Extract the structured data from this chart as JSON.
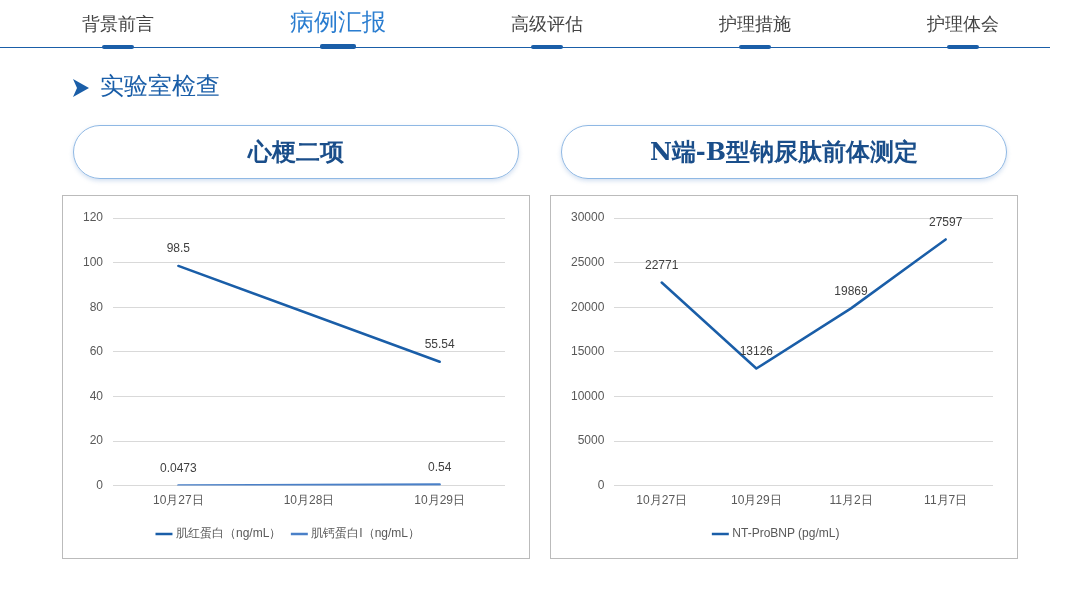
{
  "chart_data": [
    {
      "type": "other",
      "annotations": [
        "背景前言",
        "病例汇报",
        "高级评估",
        "护理措施",
        "护理体会",
        "实验室检查"
      ]
    },
    {
      "type": "line",
      "title": "心梗二项",
      "categories": [
        "10月27日",
        "10月28日",
        "10月29日"
      ],
      "series": [
        {
          "name": "肌红蛋白（ng/mL）",
          "color": "#1a5ea8",
          "values": [
            98.5,
            null,
            55.54
          ]
        },
        {
          "name": "肌钙蛋白I（ng/mL）",
          "color": "#4a80c8",
          "values": [
            0.0473,
            null,
            0.54
          ]
        }
      ],
      "ylim": [
        0,
        120
      ],
      "yticks": [
        0,
        20,
        40,
        60,
        80,
        100,
        120
      ],
      "grid": "y",
      "legend": "bottom",
      "data_labels": true,
      "marker": "none",
      "line_style": "solid"
    },
    {
      "type": "line",
      "title": "N端-B型钠尿肽前体测定",
      "categories": [
        "10月27日",
        "10月29日",
        "11月2日",
        "11月7日"
      ],
      "series": [
        {
          "name": "NT-ProBNP (pg/mL)",
          "color": "#1a5ea8",
          "values": [
            22771,
            13126,
            19869,
            27597
          ]
        }
      ],
      "ylim": [
        0,
        30000
      ],
      "yticks": [
        0,
        5000,
        10000,
        15000,
        20000,
        25000,
        30000
      ],
      "grid": "y",
      "legend": "bottom",
      "data_labels": true,
      "marker": "none",
      "line_style": "solid"
    }
  ]
}
